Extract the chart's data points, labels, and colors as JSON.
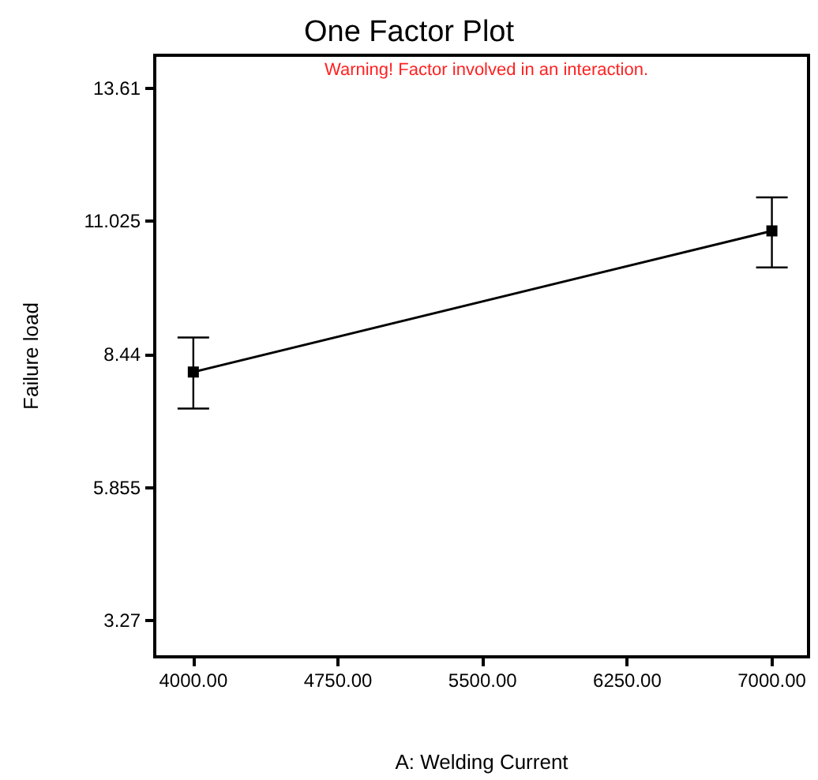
{
  "chart_data": {
    "type": "line",
    "title": "One Factor Plot",
    "xlabel": "A: Welding Current",
    "ylabel": "Failure load",
    "annotations": [
      "Warning! Factor involved in an interaction."
    ],
    "x": [
      4000,
      7000
    ],
    "series": [
      {
        "color": "#000000",
        "values": [
          8.1,
          10.84
        ],
        "errors": [
          [
            7.39,
            8.77
          ],
          [
            10.13,
            11.49
          ]
        ]
      }
    ],
    "xlim": [
      3800,
      7190
    ],
    "xticks": [
      {
        "value": 4000,
        "label": "4000.00"
      },
      {
        "value": 4750,
        "label": "4750.00"
      },
      {
        "value": 5500,
        "label": "5500.00"
      },
      {
        "value": 6250,
        "label": "6250.00"
      },
      {
        "value": 7000,
        "label": "7000.00"
      }
    ],
    "ylim": [
      2.57,
      14.25
    ],
    "yticks": [
      3.27,
      5.855,
      8.44,
      11.025,
      13.61
    ],
    "marker": "square",
    "line_style": "solid"
  }
}
